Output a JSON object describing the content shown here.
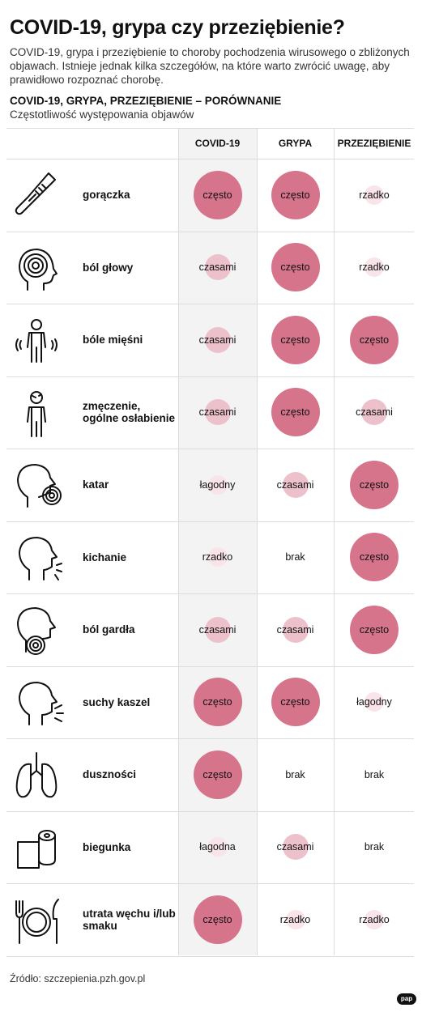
{
  "header": {
    "title": "COVID-19, grypa czy przeziębienie?",
    "lead": "COVID-19, grypa i przeziębienie to choroby pochodzenia wirusowego o zbliżonych objawach. Istnieje jednak kilka szczegółów, na które warto zwrócić uwagę, aby prawidłowo rozpoznać chorobę.",
    "subheading": "COVID-19, GRYPA, PRZEZIĘBIENIE – PORÓWNANIE",
    "subnote": "Częstotliwość występowania objawów"
  },
  "columns": [
    "COVID-19",
    "GRYPA",
    "PRZEZIĘBIENIE"
  ],
  "colors": {
    "often": "#d6748b",
    "sometimes": "#ecc1cb",
    "rarely": "#f9e4ea",
    "shade": "#f3f3f3"
  },
  "rows": [
    {
      "icon": "thermometer-icon",
      "label": "gorączka",
      "values": [
        "często",
        "często",
        "rzadko"
      ]
    },
    {
      "icon": "headache-icon",
      "label": "ból głowy",
      "values": [
        "czasami",
        "często",
        "rzadko"
      ]
    },
    {
      "icon": "aching-person-icon",
      "label": "bóle mięśni",
      "values": [
        "czasami",
        "często",
        "często"
      ]
    },
    {
      "icon": "tired-person-icon",
      "label": "zmęczenie, ogólne osłabienie",
      "values": [
        "czasami",
        "często",
        "czasami"
      ]
    },
    {
      "icon": "runny-nose-icon",
      "label": "katar",
      "values": [
        "łagodny",
        "czasami",
        "często"
      ]
    },
    {
      "icon": "sneeze-icon",
      "label": "kichanie",
      "values": [
        "rzadko",
        "brak",
        "często"
      ]
    },
    {
      "icon": "sore-throat-icon",
      "label": "ból gardła",
      "values": [
        "czasami",
        "czasami",
        "często"
      ]
    },
    {
      "icon": "cough-icon",
      "label": "suchy kaszel",
      "values": [
        "często",
        "często",
        "łagodny"
      ]
    },
    {
      "icon": "lungs-icon",
      "label": "duszności",
      "values": [
        "często",
        "brak",
        "brak"
      ]
    },
    {
      "icon": "toilet-paper-icon",
      "label": "biegunka",
      "values": [
        "łagodna",
        "czasami",
        "brak"
      ]
    },
    {
      "icon": "plate-cutlery-icon",
      "label": "utrata węchu i/lub smaku",
      "values": [
        "często",
        "rzadko",
        "rzadko"
      ]
    }
  ],
  "footer": {
    "source": "Źródło: szczepienia.pzh.gov.pl",
    "logo": "PAP"
  }
}
